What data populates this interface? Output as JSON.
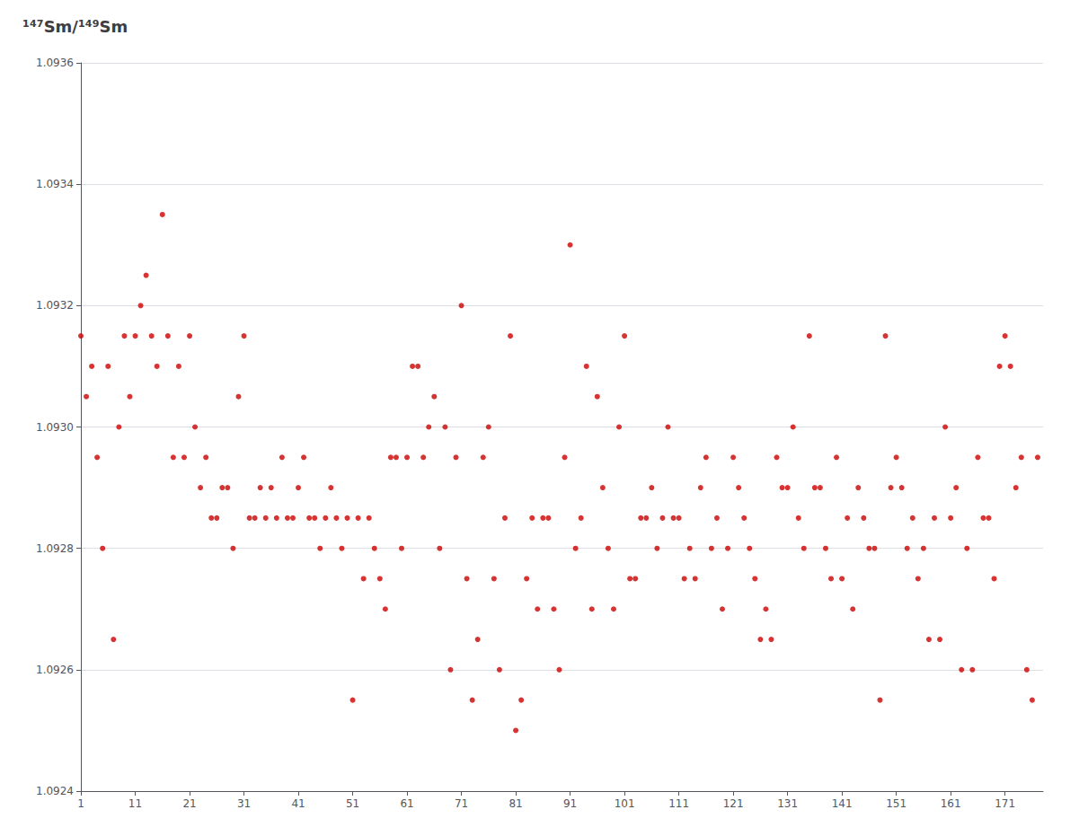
{
  "chart_data": {
    "type": "scatter",
    "title": "¹⁴⁷Sm/¹⁴⁹Sm",
    "color": "#cc0000",
    "grid": "y",
    "xlim": [
      1,
      178
    ],
    "ylim": [
      1.0924,
      1.0936
    ],
    "xticks": [
      1,
      11,
      21,
      31,
      41,
      51,
      61,
      71,
      81,
      91,
      101,
      111,
      121,
      131,
      141,
      151,
      161,
      171
    ],
    "yticks": [
      1.0924,
      1.0926,
      1.0928,
      {
        "value": 1.093,
        "label": "1.0930"
      },
      1.0932,
      1.0934,
      1.0936
    ],
    "x": [
      1,
      2,
      3,
      4,
      5,
      6,
      7,
      8,
      9,
      10,
      11,
      12,
      13,
      14,
      15,
      16,
      17,
      18,
      19,
      20,
      21,
      22,
      23,
      24,
      25,
      26,
      27,
      28,
      29,
      30,
      31,
      32,
      33,
      34,
      35,
      36,
      37,
      38,
      39,
      40,
      41,
      42,
      43,
      44,
      45,
      46,
      47,
      48,
      49,
      50,
      51,
      52,
      53,
      54,
      55,
      56,
      57,
      58,
      59,
      60,
      61,
      62,
      63,
      64,
      65,
      66,
      67,
      68,
      69,
      70,
      71,
      72,
      73,
      74,
      75,
      76,
      77,
      78,
      79,
      80,
      81,
      82,
      83,
      84,
      85,
      86,
      87,
      88,
      89,
      90,
      91,
      92,
      93,
      94,
      95,
      96,
      97,
      98,
      99,
      100,
      101,
      102,
      103,
      104,
      105,
      106,
      107,
      108,
      109,
      110,
      111,
      112,
      113,
      114,
      115,
      116,
      117,
      118,
      119,
      120,
      121,
      122,
      123,
      124,
      125,
      126,
      127,
      128,
      129,
      130,
      131,
      132,
      133,
      134,
      135,
      136,
      137,
      138,
      139,
      140,
      141,
      142,
      143,
      144,
      145,
      146,
      147,
      148,
      149,
      150,
      151,
      152,
      153,
      154,
      155,
      156,
      157,
      158,
      159,
      160,
      161,
      162,
      163,
      164,
      165,
      166,
      167,
      168,
      169,
      170,
      171,
      172,
      173,
      174,
      175,
      176,
      177
    ],
    "values": [
      1.09315,
      1.09305,
      1.0931,
      1.09295,
      1.0928,
      1.0931,
      1.09265,
      1.093,
      1.09315,
      1.09305,
      1.09315,
      1.0932,
      1.09325,
      1.09315,
      1.0931,
      1.09335,
      1.09315,
      1.09295,
      1.0931,
      1.09295,
      1.09315,
      1.093,
      1.0929,
      1.09295,
      1.09285,
      1.09285,
      1.0929,
      1.0929,
      1.0928,
      1.09305,
      1.09315,
      1.09285,
      1.09285,
      1.0929,
      1.09285,
      1.0929,
      1.09285,
      1.09295,
      1.09285,
      1.09285,
      1.0929,
      1.09295,
      1.09285,
      1.09285,
      1.0928,
      1.09285,
      1.0929,
      1.09285,
      1.0928,
      1.09285,
      1.09255,
      1.09285,
      1.09275,
      1.09285,
      1.0928,
      1.09275,
      1.0927,
      1.09295,
      1.09295,
      1.0928,
      1.09295,
      1.0931,
      1.0931,
      1.09295,
      1.093,
      1.09305,
      1.0928,
      1.093,
      1.0926,
      1.09295,
      1.0932,
      1.09275,
      1.09255,
      1.09265,
      1.09295,
      1.093,
      1.09275,
      1.0926,
      1.09285,
      1.09315,
      1.0925,
      1.09255,
      1.09275,
      1.09285,
      1.0927,
      1.09285,
      1.09285,
      1.0927,
      1.0926,
      1.09295,
      1.0933,
      1.0928,
      1.09285,
      1.0931,
      1.0927,
      1.09305,
      1.0929,
      1.0928,
      1.0927,
      1.093,
      1.09315,
      1.09275,
      1.09275,
      1.09285,
      1.09285,
      1.0929,
      1.0928,
      1.09285,
      1.093,
      1.09285,
      1.09285,
      1.09275,
      1.0928,
      1.09275,
      1.0929,
      1.09295,
      1.0928,
      1.09285,
      1.0927,
      1.0928,
      1.09295,
      1.0929,
      1.09285,
      1.0928,
      1.09275,
      1.09265,
      1.0927,
      1.09265,
      1.09295,
      1.0929,
      1.0929,
      1.093,
      1.09285,
      1.0928,
      1.09315,
      1.0929,
      1.0929,
      1.0928,
      1.09275,
      1.09295,
      1.09275,
      1.09285,
      1.0927,
      1.0929,
      1.09285,
      1.0928,
      1.0928,
      1.09255,
      1.09315,
      1.0929,
      1.09295,
      1.0929,
      1.0928,
      1.09285,
      1.09275,
      1.0928,
      1.09265,
      1.09285,
      1.09265,
      1.093,
      1.09285,
      1.0929,
      1.0926,
      1.0928,
      1.0926,
      1.09295,
      1.09285,
      1.09285,
      1.09275,
      1.0931,
      1.09315,
      1.0931,
      1.0929,
      1.09295,
      1.0926,
      1.09255,
      1.09295
    ]
  }
}
